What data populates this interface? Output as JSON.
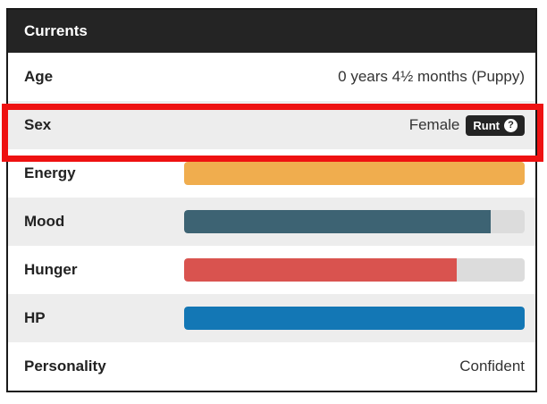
{
  "panel": {
    "title": "Currents",
    "rows": [
      {
        "type": "text",
        "label": "Age",
        "value": "0 years 4½ months (Puppy)"
      },
      {
        "type": "text-badge",
        "label": "Sex",
        "value": "Female",
        "badge": {
          "label": "Runt",
          "icon": "?"
        }
      },
      {
        "type": "bar",
        "label": "Energy",
        "percent": 100,
        "color": "#f0ad4e"
      },
      {
        "type": "bar",
        "label": "Mood",
        "percent": 90,
        "color": "#3d6373"
      },
      {
        "type": "bar",
        "label": "Hunger",
        "percent": 80,
        "color": "#d9534f"
      },
      {
        "type": "bar",
        "label": "HP",
        "percent": 100,
        "color": "#1377b5"
      },
      {
        "type": "text",
        "label": "Personality",
        "value": "Confident"
      }
    ]
  },
  "colors": {
    "header_bg": "#242424",
    "panel_border": "#1a1a1a",
    "alt_row_bg": "#ededed",
    "bar_track": "#dcdcdc",
    "badge_bg": "#242424"
  },
  "highlight": {
    "color": "#ee1111"
  }
}
